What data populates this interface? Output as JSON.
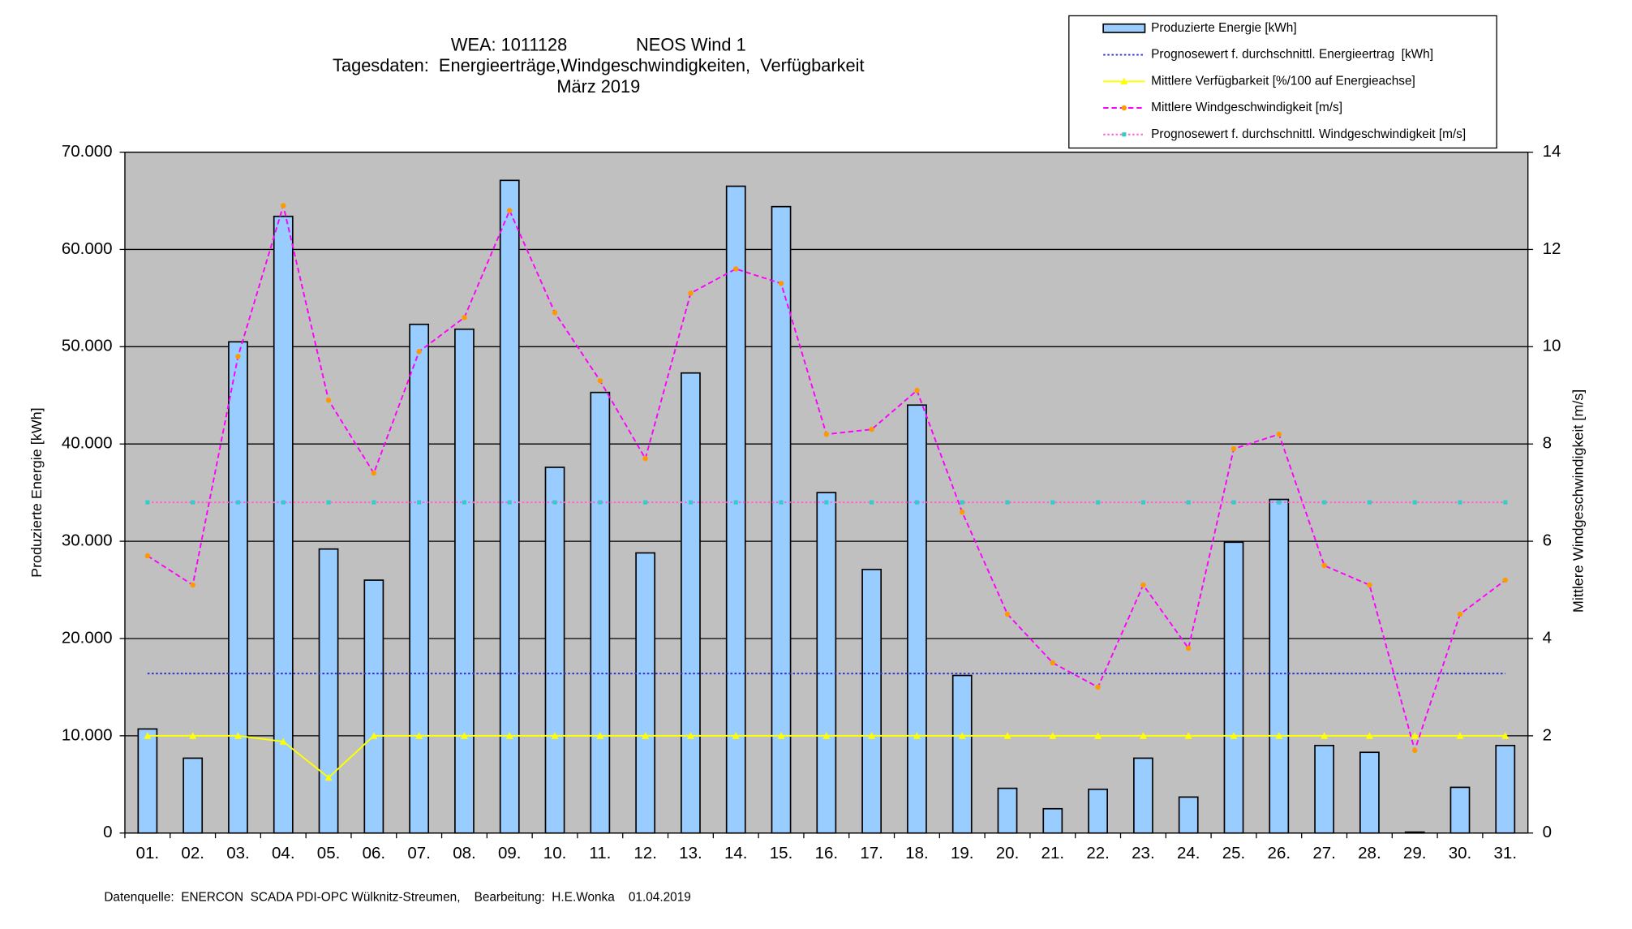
{
  "chart_data": {
    "type": "bar",
    "title": [
      "WEA: 1011128              NEOS Wind 1",
      "Tagesdaten:  Energieerträge,Windgeschwindigkeiten,  Verfügbarkeit",
      "März 2019"
    ],
    "ylabel": "Produzierte Energie [kWh]",
    "y2label": "Mittlere Windgeschwindigkeit [m/s]",
    "source": "Datenquelle:  ENERCON  SCADA PDI-OPC Wülknitz-Streumen,    Bearbeitung:  H.E.Wonka    01.04.2019",
    "categories": [
      "01.",
      "02.",
      "03.",
      "04.",
      "05.",
      "06.",
      "07.",
      "08.",
      "09.",
      "10.",
      "11.",
      "12.",
      "13.",
      "14.",
      "15.",
      "16.",
      "17.",
      "18.",
      "19.",
      "20.",
      "21.",
      "22.",
      "23.",
      "24.",
      "25.",
      "26.",
      "27.",
      "28.",
      "29.",
      "30.",
      "31."
    ],
    "series": [
      {
        "name": "Produzierte Energie [kWh]",
        "type": "bar",
        "color": "#99ccff",
        "axis": "y",
        "values": [
          10700,
          7700,
          50500,
          63400,
          29200,
          26000,
          52300,
          51800,
          67100,
          37600,
          45300,
          28800,
          47300,
          66500,
          64400,
          35000,
          27100,
          44000,
          16200,
          4600,
          2500,
          4500,
          7700,
          3700,
          29900,
          34300,
          9000,
          8300,
          100,
          4700,
          9000
        ]
      },
      {
        "name": "Prognosewert f. durchschnittl. Energieertrag  [kWh]",
        "type": "line",
        "color": "#3333cc",
        "style": "dotted",
        "axis": "y",
        "values": [
          16400,
          16400,
          16400,
          16400,
          16400,
          16400,
          16400,
          16400,
          16400,
          16400,
          16400,
          16400,
          16400,
          16400,
          16400,
          16400,
          16400,
          16400,
          16400,
          16400,
          16400,
          16400,
          16400,
          16400,
          16400,
          16400,
          16400,
          16400,
          16400,
          16400,
          16400
        ]
      },
      {
        "name": "Mittlere Verfügbarkeit [%/100 auf Energieachse]",
        "type": "line",
        "color": "#ffff00",
        "style": "solid",
        "marker": "triangle",
        "axis": "y",
        "values": [
          10000,
          10000,
          10000,
          9400,
          5700,
          10000,
          10000,
          10000,
          10000,
          10000,
          10000,
          10000,
          10000,
          10000,
          10000,
          10000,
          10000,
          10000,
          10000,
          10000,
          10000,
          10000,
          10000,
          10000,
          10000,
          10000,
          10000,
          10000,
          10000,
          10000,
          10000
        ]
      },
      {
        "name": "Mittlere Windgeschwindigkeit [m/s]",
        "type": "line",
        "color": "#ff00ff",
        "marker_color": "#ff9900",
        "style": "dashed",
        "marker": "circle",
        "axis": "y2",
        "values": [
          5.7,
          5.1,
          9.8,
          12.9,
          8.9,
          7.4,
          9.9,
          10.6,
          12.8,
          10.7,
          9.3,
          7.7,
          11.1,
          11.6,
          11.3,
          8.2,
          8.3,
          9.1,
          6.6,
          4.5,
          3.5,
          3.0,
          5.1,
          3.8,
          7.9,
          8.2,
          5.5,
          5.1,
          1.7,
          4.5,
          5.2
        ]
      },
      {
        "name": "Prognosewert f. durchschnittl. Windgeschwindigkeit [m/s]",
        "type": "line",
        "color": "#ff66cc",
        "marker_color": "#33cccc",
        "style": "dotted",
        "marker": "square",
        "axis": "y2",
        "values": [
          6.8,
          6.8,
          6.8,
          6.8,
          6.8,
          6.8,
          6.8,
          6.8,
          6.8,
          6.8,
          6.8,
          6.8,
          6.8,
          6.8,
          6.8,
          6.8,
          6.8,
          6.8,
          6.8,
          6.8,
          6.8,
          6.8,
          6.8,
          6.8,
          6.8,
          6.8,
          6.8,
          6.8,
          6.8,
          6.8,
          6.8
        ]
      }
    ],
    "ylim": [
      0,
      70000
    ],
    "yticks": [
      0,
      {
        "value": 10000,
        "label": "10.000"
      },
      {
        "value": 20000,
        "label": "20.000"
      },
      {
        "value": 30000,
        "label": "30.000"
      },
      {
        "value": 40000,
        "label": "40.000"
      },
      {
        "value": 50000,
        "label": "50.000"
      },
      {
        "value": 60000,
        "label": "60.000"
      },
      {
        "value": 70000,
        "label": "70.000"
      }
    ],
    "y2lim": [
      0,
      14
    ],
    "y2ticks": [
      0,
      2,
      4,
      6,
      8,
      10,
      12,
      14
    ],
    "grid": true,
    "plot_background": "#c0c0c0",
    "legend": "top-right"
  }
}
